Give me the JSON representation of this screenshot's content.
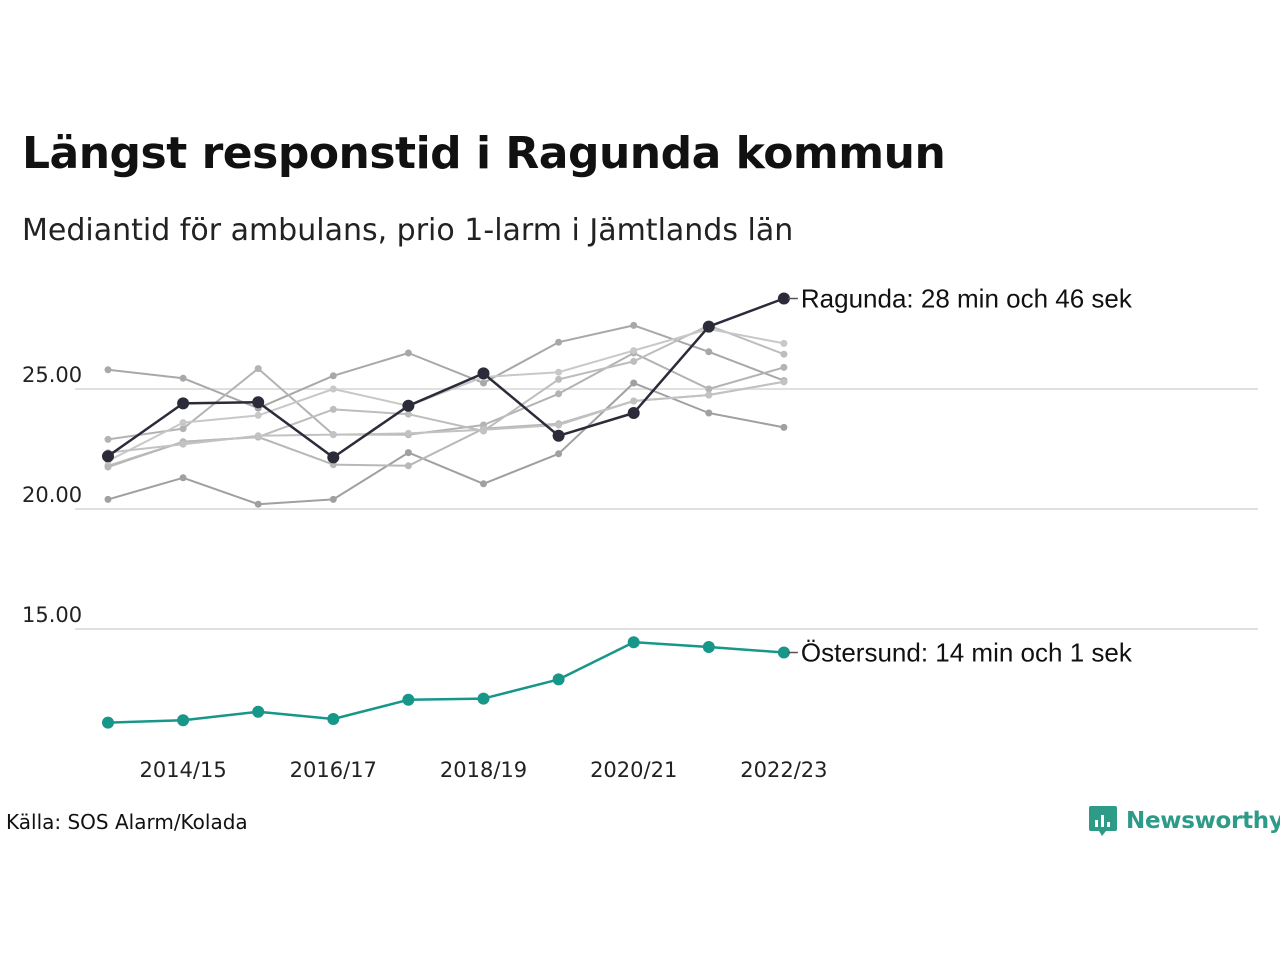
{
  "header": {
    "title": "Längst responstid i Ragunda kommun",
    "subtitle": "Mediantid för ambulans, prio 1-larm i Jämtlands län"
  },
  "footer": {
    "source": "Källa: SOS Alarm/Kolada",
    "brand": "Newsworthy"
  },
  "colors": {
    "highlight": "#2b2b3a",
    "accent": "#17968a",
    "others": [
      "#a8a8a8",
      "#b3b3b3",
      "#bdbdbd",
      "#c8c8c8",
      "#a0a0a0",
      "#b8b8b8",
      "#c2c2c2"
    ],
    "grid": "#e0e0e0",
    "brand": "#2e9a88"
  },
  "chart_data": {
    "type": "line",
    "title": "Längst responstid i Ragunda kommun",
    "subtitle": "Mediantid för ambulans, prio 1-larm i Jämtlands län",
    "xlabel": "",
    "ylabel": "",
    "x": [
      "2013/14",
      "2014/15",
      "2015/16",
      "2016/17",
      "2017/18",
      "2018/19",
      "2019/20",
      "2020/21",
      "2021/22",
      "2022/23"
    ],
    "x_tick_labels": [
      "2014/15",
      "2016/17",
      "2018/19",
      "2020/21",
      "2022/23"
    ],
    "y_ticks": [
      "15.00",
      "20.00",
      "25.00"
    ],
    "y_tick_values": [
      15,
      20,
      25
    ],
    "ylim": [
      11.1,
      29.7
    ],
    "grid": true,
    "series": [
      {
        "name": "",
        "role": "other",
        "values": [
          25.8,
          25.45,
          24.2,
          25.55,
          26.5,
          25.25,
          26.95,
          27.65,
          26.55,
          25.35
        ]
      },
      {
        "name": "",
        "role": "other",
        "values": [
          22.9,
          23.35,
          25.85,
          23.1,
          23.1,
          23.5,
          24.8,
          26.5,
          25.0,
          25.9
        ]
      },
      {
        "name": "",
        "role": "other",
        "values": [
          21.8,
          22.8,
          23.0,
          24.15,
          23.95,
          23.25,
          25.4,
          26.15,
          27.65,
          26.45
        ]
      },
      {
        "name": "",
        "role": "other",
        "values": [
          22.0,
          23.6,
          23.9,
          25.0,
          24.3,
          25.5,
          25.7,
          26.6,
          27.5,
          26.9
        ]
      },
      {
        "name": "",
        "role": "other",
        "values": [
          20.4,
          21.3,
          20.2,
          20.4,
          22.35,
          21.05,
          22.3,
          25.25,
          24.0,
          23.4
        ]
      },
      {
        "name": "",
        "role": "other",
        "values": [
          21.75,
          22.8,
          23.0,
          21.85,
          21.8,
          23.35,
          23.55,
          24.5,
          24.75,
          25.3
        ]
      },
      {
        "name": "",
        "role": "other",
        "values": [
          22.35,
          22.7,
          23.05,
          23.1,
          23.15,
          23.3,
          23.5,
          24.5,
          24.75,
          25.3
        ]
      },
      {
        "name": "Ragunda",
        "role": "highlight",
        "label": "Ragunda: 28 min och 46 sek",
        "values": [
          22.2,
          24.4,
          24.45,
          22.15,
          24.3,
          25.65,
          23.05,
          24.0,
          27.6,
          28.77
        ]
      },
      {
        "name": "Östersund",
        "role": "accent",
        "label": "Östersund: 14 min och 1 sek",
        "values": [
          11.1,
          11.2,
          11.55,
          11.25,
          12.05,
          12.1,
          12.9,
          14.45,
          14.25,
          14.02
        ]
      }
    ]
  }
}
